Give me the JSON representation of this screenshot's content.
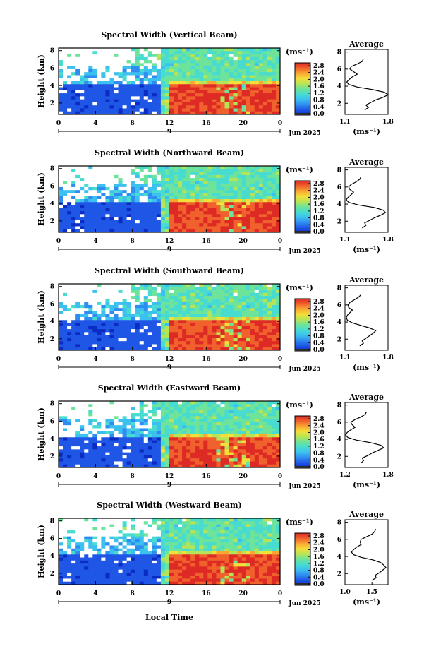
{
  "colors": {
    "colormap": [
      "#0b2cc2",
      "#1f56e6",
      "#2f8cf0",
      "#3cc0f0",
      "#48dcd0",
      "#6ee39a",
      "#b7e456",
      "#f3df3a",
      "#f9a732",
      "#f0612d",
      "#dd2a24"
    ],
    "cbar_bottom": "#2b2b2b",
    "missing": "#ffffff"
  },
  "figure": {
    "xlabel": "Local Time"
  },
  "chart_data": [
    {
      "type": "heatmap",
      "title": "Spectral Width (Vertical Beam)",
      "ylabel": "Height (km)",
      "yticks": [
        "2",
        "4",
        "6",
        "8"
      ],
      "xticks": [
        "0",
        "4",
        "8",
        "12",
        "16",
        "20",
        "0"
      ],
      "date_tick": "9",
      "date_label": "Jun 2025",
      "colorbar": {
        "unit": "(ms⁻¹)",
        "ticks": [
          "0.0",
          "0.4",
          "0.8",
          "1.2",
          "1.6",
          "2.0",
          "2.4",
          "2.8"
        ]
      },
      "profile": {
        "title": "Average",
        "xticks": [
          "1.1",
          "1.8"
        ],
        "xlim": [
          1.1,
          1.8
        ],
        "yticks": [
          "2",
          "4",
          "6",
          "8"
        ],
        "unit": "(ms⁻¹)",
        "heights": [
          1.2,
          1.5,
          1.8,
          2.1,
          2.4,
          2.7,
          3.0,
          3.3,
          3.6,
          3.9,
          4.2,
          4.5,
          4.8,
          5.1,
          5.4,
          5.7,
          6.0,
          6.3,
          6.6,
          6.9,
          7.2
        ],
        "values": [
          1.42,
          1.48,
          1.44,
          1.52,
          1.6,
          1.72,
          1.8,
          1.74,
          1.55,
          1.3,
          1.16,
          1.13,
          1.17,
          1.22,
          1.3,
          1.24,
          1.18,
          1.2,
          1.3,
          1.38,
          1.4
        ]
      }
    },
    {
      "type": "heatmap",
      "title": "Spectral Width (Northward Beam)",
      "ylabel": "Height (km)",
      "yticks": [
        "2",
        "4",
        "6",
        "8"
      ],
      "xticks": [
        "0",
        "4",
        "8",
        "12",
        "16",
        "20",
        "0"
      ],
      "date_tick": "9",
      "date_label": "Jun 2025",
      "colorbar": {
        "unit": "(ms⁻¹)",
        "ticks": [
          "0.0",
          "0.4",
          "0.8",
          "1.2",
          "1.6",
          "2.0",
          "2.4",
          "2.8"
        ]
      },
      "profile": {
        "title": "Average",
        "xticks": [
          "1.1",
          "1.8"
        ],
        "xlim": [
          1.1,
          1.8
        ],
        "yticks": [
          "2",
          "4",
          "6",
          "8"
        ],
        "unit": "(ms⁻¹)",
        "heights": [
          1.2,
          1.5,
          1.8,
          2.1,
          2.4,
          2.7,
          3.0,
          3.3,
          3.6,
          3.9,
          4.2,
          4.5,
          4.8,
          5.1,
          5.4,
          5.7,
          6.0,
          6.3,
          6.6,
          6.9,
          7.2
        ],
        "values": [
          1.38,
          1.44,
          1.42,
          1.5,
          1.58,
          1.68,
          1.76,
          1.72,
          1.58,
          1.32,
          1.16,
          1.12,
          1.15,
          1.2,
          1.24,
          1.18,
          1.16,
          1.2,
          1.28,
          1.34,
          1.36
        ]
      }
    },
    {
      "type": "heatmap",
      "title": "Spectral Width (Southward Beam)",
      "ylabel": "Height (km)",
      "yticks": [
        "2",
        "4",
        "6",
        "8"
      ],
      "xticks": [
        "0",
        "4",
        "8",
        "12",
        "16",
        "20",
        "0"
      ],
      "date_tick": "9",
      "date_label": "Jun 2025",
      "colorbar": {
        "unit": "(ms⁻¹)",
        "ticks": [
          "0.0",
          "0.4",
          "0.8",
          "1.2",
          "1.6",
          "2.0",
          "2.4",
          "2.8"
        ]
      },
      "profile": {
        "title": "Average",
        "xticks": [
          "1.1",
          "1.8"
        ],
        "xlim": [
          1.1,
          1.8
        ],
        "yticks": [
          "2",
          "4",
          "6",
          "8"
        ],
        "unit": "(ms⁻¹)",
        "heights": [
          1.2,
          1.5,
          1.8,
          2.1,
          2.4,
          2.7,
          3.0,
          3.3,
          3.6,
          3.9,
          4.2,
          4.5,
          4.8,
          5.1,
          5.4,
          5.7,
          6.0,
          6.3,
          6.6,
          6.9,
          7.2
        ],
        "values": [
          1.34,
          1.4,
          1.38,
          1.44,
          1.5,
          1.56,
          1.6,
          1.5,
          1.36,
          1.22,
          1.14,
          1.12,
          1.14,
          1.18,
          1.22,
          1.16,
          1.15,
          1.18,
          1.25,
          1.32,
          1.36
        ]
      }
    },
    {
      "type": "heatmap",
      "title": "Spectral Width (Eastward Beam)",
      "ylabel": "Height (km)",
      "yticks": [
        "2",
        "4",
        "6",
        "8"
      ],
      "xticks": [
        "0",
        "4",
        "8",
        "12",
        "16",
        "20",
        "0"
      ],
      "date_tick": "9",
      "date_label": "Jun 2025",
      "colorbar": {
        "unit": "(ms⁻¹)",
        "ticks": [
          "0.0",
          "0.4",
          "0.8",
          "1.2",
          "1.6",
          "2.0",
          "2.4",
          "2.8"
        ]
      },
      "profile": {
        "title": "Average",
        "xticks": [
          "1.2",
          "1.8"
        ],
        "xlim": [
          1.2,
          1.8
        ],
        "yticks": [
          "2",
          "4",
          "6",
          "8"
        ],
        "unit": "(ms⁻¹)",
        "heights": [
          1.2,
          1.5,
          1.8,
          2.1,
          2.4,
          2.7,
          3.0,
          3.3,
          3.6,
          3.9,
          4.2,
          4.5,
          4.8,
          5.1,
          5.4,
          5.7,
          6.0,
          6.3,
          6.6,
          6.9,
          7.2
        ],
        "values": [
          1.42,
          1.46,
          1.44,
          1.52,
          1.58,
          1.66,
          1.74,
          1.7,
          1.56,
          1.36,
          1.24,
          1.21,
          1.23,
          1.28,
          1.34,
          1.3,
          1.28,
          1.34,
          1.42,
          1.48,
          1.5
        ]
      }
    },
    {
      "type": "heatmap",
      "title": "Spectral Width (Westward Beam)",
      "ylabel": "Height (km)",
      "yticks": [
        "2",
        "4",
        "6",
        "8"
      ],
      "xticks": [
        "0",
        "4",
        "8",
        "12",
        "16",
        "20",
        "0"
      ],
      "date_tick": "9",
      "date_label": "Jun 2025",
      "colorbar": {
        "unit": "(ms⁻¹)",
        "ticks": [
          "0.0",
          "0.4",
          "0.8",
          "1.2",
          "1.6",
          "2.0",
          "2.4",
          "2.8"
        ]
      },
      "profile": {
        "title": "Average",
        "xticks": [
          "1.0",
          "1.5"
        ],
        "xlim": [
          1.0,
          1.8
        ],
        "yticks": [
          "2",
          "4",
          "6",
          "8"
        ],
        "unit": "(ms⁻¹)",
        "heights": [
          1.2,
          1.5,
          1.8,
          2.1,
          2.4,
          2.7,
          3.0,
          3.3,
          3.6,
          3.9,
          4.2,
          4.5,
          4.8,
          5.1,
          5.4,
          5.7,
          6.0,
          6.3,
          6.6,
          6.9,
          7.2
        ],
        "values": [
          1.5,
          1.58,
          1.56,
          1.64,
          1.7,
          1.76,
          1.72,
          1.66,
          1.52,
          1.3,
          1.16,
          1.12,
          1.16,
          1.22,
          1.3,
          1.28,
          1.3,
          1.4,
          1.5,
          1.55,
          1.57
        ]
      }
    }
  ]
}
